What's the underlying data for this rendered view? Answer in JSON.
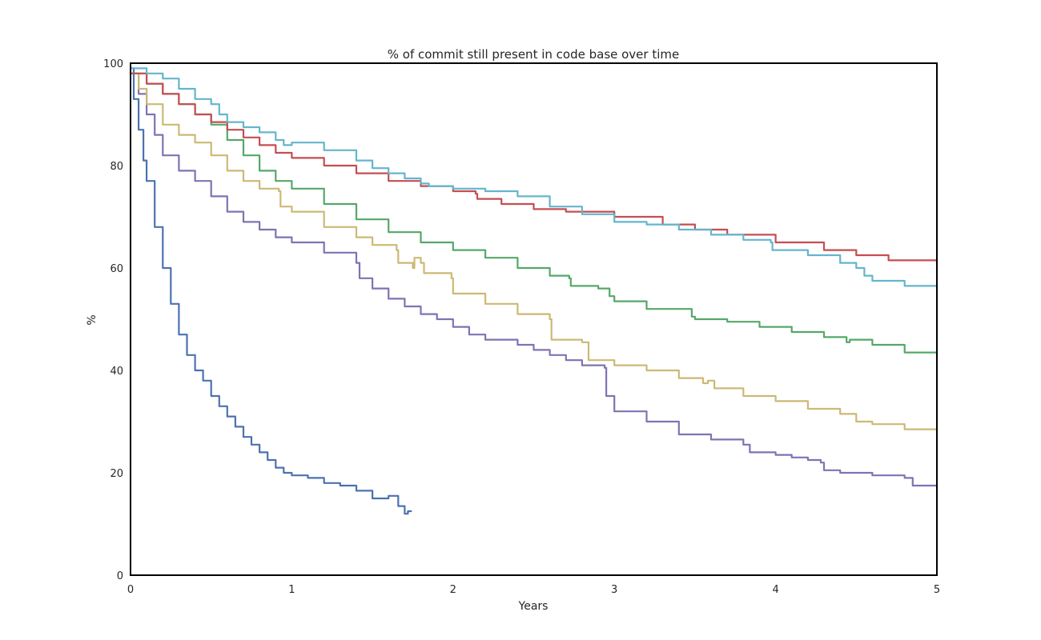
{
  "chart_data": {
    "type": "line",
    "title": "% of commit still present in code base over time",
    "xlabel": "Years",
    "ylabel": "%",
    "xlim": [
      0,
      5
    ],
    "ylim": [
      0,
      100
    ],
    "xticks": [
      "0",
      "1",
      "2",
      "3",
      "4",
      "5"
    ],
    "yticks": [
      "0",
      "20",
      "40",
      "60",
      "80",
      "100"
    ],
    "grid": false,
    "legend": "none",
    "series": [
      {
        "color": "#4c72b0",
        "x": [
          0,
          0.02,
          0.05,
          0.08,
          0.1,
          0.15,
          0.2,
          0.25,
          0.3,
          0.35,
          0.4,
          0.45,
          0.5,
          0.55,
          0.6,
          0.65,
          0.7,
          0.75,
          0.8,
          0.85,
          0.9,
          0.95,
          1.0,
          1.1,
          1.2,
          1.3,
          1.4,
          1.5,
          1.55,
          1.6,
          1.65,
          1.66,
          1.7,
          1.72,
          1.74
        ],
        "y": [
          99,
          93,
          87,
          81,
          77,
          68,
          60,
          53,
          47,
          43,
          40,
          38,
          35,
          33,
          31,
          29,
          27,
          25.5,
          24,
          22.5,
          21,
          20,
          19.5,
          19,
          18,
          17.5,
          16.5,
          15,
          15,
          15.5,
          15.5,
          13.5,
          12,
          12.5,
          12.5
        ]
      },
      {
        "color": "#8172b2",
        "x": [
          0,
          0.05,
          0.1,
          0.15,
          0.2,
          0.3,
          0.4,
          0.5,
          0.6,
          0.7,
          0.8,
          0.9,
          1.0,
          1.2,
          1.4,
          1.42,
          1.5,
          1.6,
          1.7,
          1.8,
          1.9,
          2.0,
          2.1,
          2.2,
          2.4,
          2.5,
          2.6,
          2.7,
          2.8,
          2.94,
          2.95,
          3.0,
          3.2,
          3.4,
          3.6,
          3.8,
          3.84,
          4.0,
          4.1,
          4.2,
          4.28,
          4.3,
          4.4,
          4.6,
          4.8,
          4.85,
          5.0
        ],
        "y": [
          98,
          94,
          90,
          86,
          82,
          79,
          77,
          74,
          71,
          69,
          67.5,
          66,
          65,
          63,
          61,
          58,
          56,
          54,
          52.5,
          51,
          50,
          48.5,
          47,
          46,
          45,
          44,
          43,
          42,
          41,
          40.5,
          35,
          32,
          30,
          27.5,
          26.5,
          25.5,
          24,
          23.5,
          23,
          22.5,
          22,
          20.5,
          20,
          19.5,
          19,
          17.5,
          17
        ]
      },
      {
        "color": "#ccb974",
        "x": [
          0,
          0.05,
          0.1,
          0.2,
          0.3,
          0.4,
          0.5,
          0.6,
          0.7,
          0.8,
          0.92,
          0.93,
          1.0,
          1.2,
          1.4,
          1.5,
          1.65,
          1.66,
          1.75,
          1.76,
          1.8,
          1.82,
          1.99,
          2.0,
          2.2,
          2.4,
          2.6,
          2.61,
          2.8,
          2.84,
          3.0,
          3.2,
          3.4,
          3.55,
          3.58,
          3.62,
          3.8,
          4.0,
          4.2,
          4.4,
          4.5,
          4.6,
          4.8,
          5.0
        ],
        "y": [
          98,
          95,
          92,
          88,
          86,
          84.5,
          82,
          79,
          77,
          75.5,
          75,
          72,
          71,
          68,
          66,
          64.5,
          63.5,
          61,
          60,
          62,
          61,
          59,
          58,
          55,
          53,
          51,
          50,
          46,
          45.5,
          42,
          41,
          40,
          38.5,
          37.5,
          38,
          36.5,
          35,
          34,
          32.5,
          31.5,
          30,
          29.5,
          28.5,
          27.5
        ]
      },
      {
        "color": "#55a868",
        "x": [
          0,
          0.1,
          0.2,
          0.3,
          0.4,
          0.5,
          0.6,
          0.7,
          0.8,
          0.9,
          1.0,
          1.2,
          1.4,
          1.6,
          1.8,
          2.0,
          2.2,
          2.4,
          2.6,
          2.72,
          2.73,
          2.9,
          2.97,
          3.0,
          3.2,
          3.48,
          3.5,
          3.7,
          3.9,
          4.1,
          4.3,
          4.44,
          4.46,
          4.6,
          4.8,
          5.0
        ],
        "y": [
          98,
          96,
          94,
          92,
          90,
          88,
          85,
          82,
          79,
          77,
          75.5,
          72.5,
          69.5,
          67,
          65,
          63.5,
          62,
          60,
          58.5,
          58,
          56.5,
          56,
          54.5,
          53.5,
          52,
          50.5,
          50,
          49.5,
          48.5,
          47.5,
          46.5,
          45.5,
          46,
          45,
          43.5,
          42
        ]
      },
      {
        "color": "#c44e52",
        "x": [
          0,
          0.1,
          0.2,
          0.3,
          0.4,
          0.5,
          0.6,
          0.7,
          0.8,
          0.9,
          1.0,
          1.2,
          1.4,
          1.6,
          1.8,
          2.0,
          2.14,
          2.15,
          2.3,
          2.5,
          2.7,
          3.0,
          3.3,
          3.5,
          3.7,
          4.0,
          4.3,
          4.5,
          4.7,
          5.0
        ],
        "y": [
          98,
          96,
          94,
          92,
          90,
          88.5,
          87,
          85.5,
          84,
          82.5,
          81.5,
          80,
          78.5,
          77,
          76,
          75,
          74.5,
          73.5,
          72.5,
          71.5,
          71,
          70,
          68.5,
          67.5,
          66.5,
          65,
          63.5,
          62.5,
          61.5,
          60.5
        ]
      },
      {
        "color": "#64b5cd",
        "x": [
          0,
          0.1,
          0.2,
          0.3,
          0.4,
          0.5,
          0.55,
          0.6,
          0.7,
          0.8,
          0.9,
          0.95,
          1.0,
          1.2,
          1.4,
          1.5,
          1.6,
          1.7,
          1.8,
          1.85,
          2.0,
          2.2,
          2.4,
          2.6,
          2.8,
          3.0,
          3.2,
          3.4,
          3.6,
          3.8,
          3.97,
          3.98,
          4.2,
          4.4,
          4.5,
          4.55,
          4.6,
          4.8,
          5.0
        ],
        "y": [
          99,
          98,
          97,
          95,
          93,
          92,
          90,
          88.5,
          87.5,
          86.5,
          85,
          84,
          84.5,
          83,
          81,
          79.5,
          78.5,
          77.5,
          76.5,
          76,
          75.5,
          75,
          74,
          72,
          70.5,
          69,
          68.5,
          67.5,
          66.5,
          65.5,
          65,
          63.5,
          62.5,
          61,
          60,
          58.5,
          57.5,
          56.5,
          56
        ]
      }
    ]
  }
}
